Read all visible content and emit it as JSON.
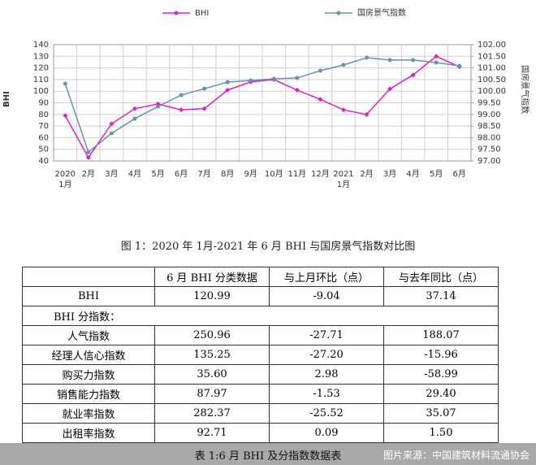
{
  "chart_data": {
    "type": "line",
    "legend": "top",
    "y_label": "BHI",
    "y2_label": "国房景气指数",
    "categories": [
      "2020\n1月",
      "2月",
      "3月",
      "4月",
      "5月",
      "6月",
      "7月",
      "8月",
      "9月",
      "10月",
      "11月",
      "12月",
      "2021\n1月",
      "2月",
      "3月",
      "4月",
      "5月",
      "6月"
    ],
    "series": [
      {
        "name": "BHI",
        "color": "#e020c8",
        "values": [
          79,
          43,
          72,
          85,
          89,
          84,
          85,
          101,
          108,
          110,
          101,
          93,
          84,
          80,
          102,
          114,
          130,
          121
        ]
      },
      {
        "name": "国房景气指数",
        "color": "#6a93a8",
        "axis": "y2",
        "values": [
          100.32,
          97.38,
          98.19,
          98.82,
          99.34,
          99.83,
          100.11,
          100.39,
          100.46,
          100.53,
          100.57,
          100.88,
          101.13,
          101.44,
          101.34,
          101.34,
          101.23,
          101.09
        ]
      }
    ],
    "ylim": [
      40,
      140
    ],
    "yticks": [
      40,
      50,
      60,
      70,
      80,
      90,
      100,
      110,
      120,
      130,
      140
    ],
    "y2lim": [
      97,
      102
    ],
    "y2ticks": [
      {
        "value": 97,
        "label": "97.00"
      },
      {
        "value": 97.5,
        "label": "97.50"
      },
      {
        "value": 98,
        "label": "98.00"
      },
      {
        "value": 98.5,
        "label": "98.50"
      },
      {
        "value": 99,
        "label": "99.00"
      },
      {
        "value": 99.5,
        "label": "99.50"
      },
      {
        "value": 100,
        "label": "100.00"
      },
      {
        "value": 100.5,
        "label": "100.50"
      },
      {
        "value": 101,
        "label": "101.00"
      },
      {
        "value": 101.5,
        "label": "101.50"
      },
      {
        "value": 102,
        "label": "102.00"
      }
    ],
    "grid": true
  },
  "caption": "图 1：2020 年 1月-2021 年 6 月 BHI 与国房景气指数对比图",
  "table": {
    "header": [
      "",
      "6 月 BHI 分类数据",
      "与上月环比（点）",
      "与去年同比（点）"
    ],
    "rows": [
      [
        "BHI",
        "120.99",
        "-9.04",
        "37.14"
      ],
      [
        "BHI 分指数："
      ],
      [
        "人气指数",
        "250.96",
        "-27.71",
        "188.07"
      ],
      [
        "经理人信心指数",
        "135.25",
        "-27.20",
        "-15.96"
      ],
      [
        "购买力指数",
        "35.60",
        "2.98",
        "-58.99"
      ],
      [
        "销售能力指数",
        "87.97",
        "-1.53",
        "29.40"
      ],
      [
        "就业率指数",
        "282.37",
        "-25.52",
        "35.07"
      ],
      [
        "出租率指数",
        "92.71",
        "0.09",
        "1.50"
      ]
    ]
  },
  "table_caption": "表 1:6 月 BHI 及分指数数据表",
  "credit": "图片来源：中国建筑材料流通协会"
}
